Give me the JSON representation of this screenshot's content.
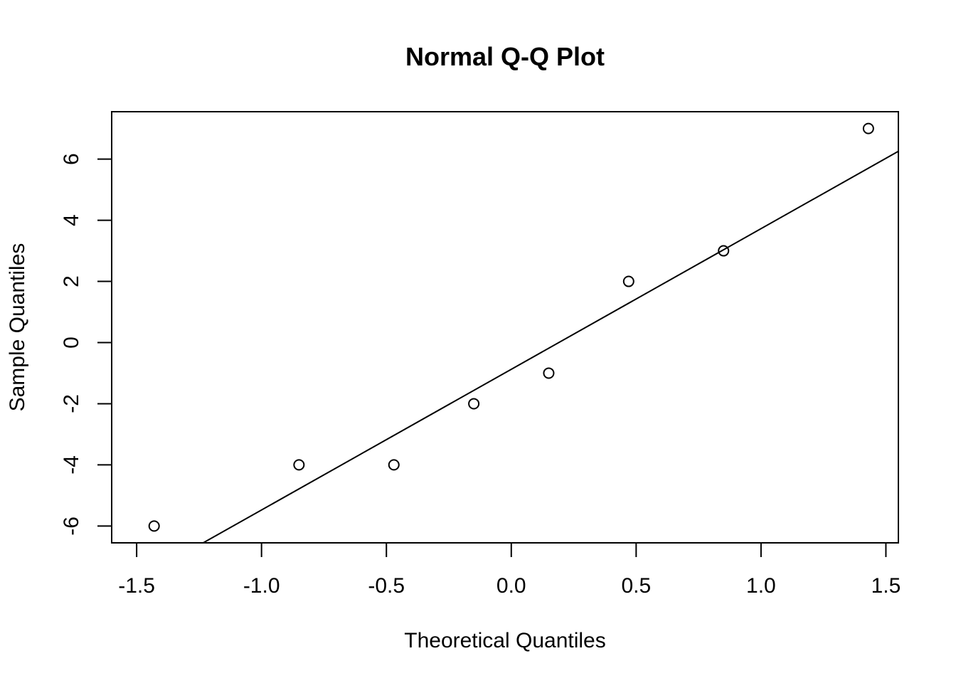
{
  "chart_data": {
    "type": "scatter",
    "title": "Normal Q-Q Plot",
    "xlabel": "Theoretical Quantiles",
    "ylabel": "Sample Quantiles",
    "xlim": [
      -1.6,
      1.55
    ],
    "ylim": [
      -6.55,
      7.55
    ],
    "x_ticks": [
      "-1.5",
      "-1.0",
      "-0.5",
      "0.0",
      "0.5",
      "1.0",
      "1.5"
    ],
    "y_ticks": [
      "-6",
      "-4",
      "-2",
      "0",
      "2",
      "4",
      "6"
    ],
    "grid": false,
    "series": [
      {
        "points": [
          {
            "x": -1.43,
            "y": -6
          },
          {
            "x": -0.85,
            "y": -4
          },
          {
            "x": -0.47,
            "y": -4
          },
          {
            "x": -0.15,
            "y": -2
          },
          {
            "x": 0.15,
            "y": -1
          },
          {
            "x": 0.47,
            "y": 2
          },
          {
            "x": 0.85,
            "y": 3
          },
          {
            "x": 1.43,
            "y": 7
          }
        ]
      }
    ],
    "reference_line": {
      "intercept": -0.875,
      "slope": 4.6
    }
  }
}
